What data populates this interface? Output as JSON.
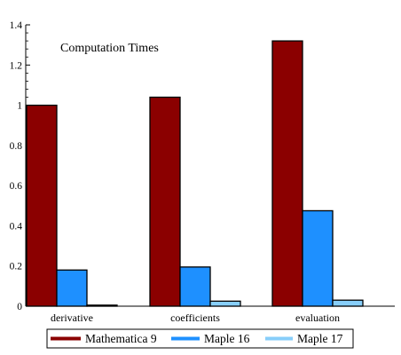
{
  "chart_data": {
    "type": "bar",
    "title": "Computation Times",
    "xlabel": "",
    "ylabel": "",
    "categories": [
      "derivative",
      "coefficients",
      "evaluation"
    ],
    "ylim": [
      0,
      1.4
    ],
    "yticks": [
      0,
      0.2,
      0.4,
      0.6,
      0.8,
      1,
      1.2,
      1.4
    ],
    "yticklabels": [
      "0",
      "0.2",
      "0.4",
      "0.6",
      "0.8",
      "1",
      "1.2",
      "1.4"
    ],
    "grid": false,
    "legend_position": "bottom",
    "series": [
      {
        "name": "Mathematica 9",
        "color": "#8b0000",
        "values": [
          1.0,
          1.04,
          1.32
        ]
      },
      {
        "name": "Maple 16",
        "color": "#1e90ff",
        "values": [
          0.18,
          0.195,
          0.475
        ]
      },
      {
        "name": "Maple 17",
        "color": "#87cefa",
        "values": [
          0.005,
          0.025,
          0.03
        ]
      }
    ]
  }
}
